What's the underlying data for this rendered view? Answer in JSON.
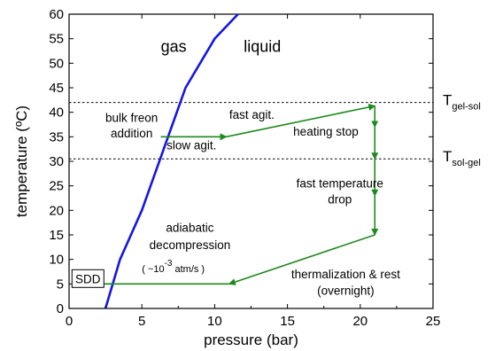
{
  "chart_data": {
    "type": "line",
    "xlabel": "pressure (bar)",
    "ylabel": "temperature (ºC)",
    "xlim": [
      0,
      25
    ],
    "ylim": [
      0,
      60
    ],
    "xticks": [
      0,
      5,
      10,
      15,
      20,
      25
    ],
    "yticks": [
      0,
      5,
      10,
      15,
      20,
      25,
      30,
      35,
      40,
      45,
      50,
      55,
      60
    ],
    "grid": false,
    "region_labels": {
      "gas": "gas",
      "liquid": "liquid"
    },
    "reference_lines": [
      {
        "y": 42,
        "label_main": "T",
        "label_sub": "gel-sol"
      },
      {
        "y": 30.5,
        "label_main": "T",
        "label_sub": "sol-gel"
      }
    ],
    "series": [
      {
        "color": "#1515e6",
        "style": "solid",
        "x": [
          2.5,
          3.5,
          5.0,
          8.0,
          10.0,
          11.6
        ],
        "y": [
          0,
          10,
          20,
          45,
          55,
          60
        ]
      },
      {
        "color": "#1d8a1d",
        "style": "arrow-path",
        "x": [
          6.3,
          10.8,
          21.0,
          21.0,
          21.0,
          21.0,
          21.0,
          11.0,
          1.2
        ],
        "y": [
          35.0,
          35.0,
          41.3,
          37.0,
          30.5,
          23.0,
          15.0,
          5.0,
          5.0
        ]
      }
    ],
    "annotations": {
      "bulk_line1": "bulk freon",
      "bulk_line2": "addition",
      "fast_agit": "fast agit.",
      "slow_agit": "slow agit.",
      "heating_stop": "heating stop",
      "fast_drop_line1": "fast temperature",
      "fast_drop_line2": "drop",
      "adiabatic_line1": "adiabatic",
      "adiabatic_line2": "decompression",
      "rate_open": "( ~10",
      "rate_exp": "-3",
      "rate_close": "atm/s )",
      "therm_line1": "thermalization & rest",
      "therm_line2": "(overnight)",
      "sdd": "SDD"
    }
  }
}
